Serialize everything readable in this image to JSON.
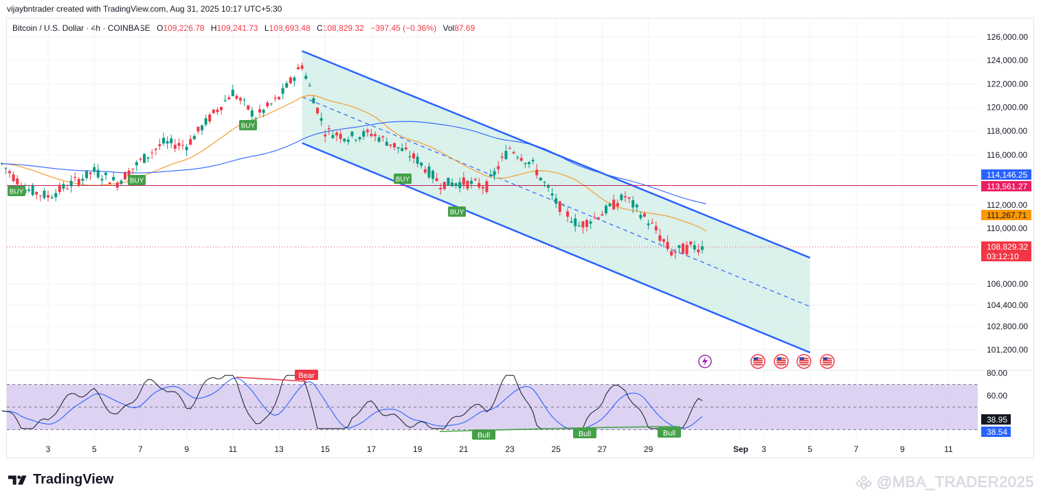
{
  "header": {
    "created_by": "vijaybntrader created with TradingView.com, Aug 31, 2025 10:17 UTC+5:30",
    "symbol": "Bitcoin / U.S. Dollar · 4h · COINBASE",
    "o_label": "O",
    "o_value": "109,226.78",
    "h_label": "H",
    "h_value": "109,241.73",
    "l_label": "L",
    "l_value": "108,693.48",
    "c_label": "C",
    "c_value": "108,829.32",
    "change": "−397.45 (−0.36%)",
    "vol_label": "Vol",
    "vol_value": "87.69"
  },
  "brand": "TradingView",
  "watermark": "@MBA_TRADER2025",
  "colors": {
    "up": "#089981",
    "down": "#f23645",
    "channel": "#2962ff",
    "channel_fill": "#d4efe9",
    "ma_orange": "#f7a23b",
    "ma_blue": "#2962ff",
    "resistance": "#c2185b",
    "rsi_band": "#d9cdef",
    "rsi_line": "#131722",
    "rsi_ma": "#2962ff"
  },
  "chart_data": [
    {
      "type": "candlestick",
      "title": "Bitcoin / U.S. Dollar · 4h · COINBASE",
      "y_axis_ticks": [
        "126,000.00",
        "124,000.00",
        "122,000.00",
        "120,000.00",
        "118,000.00",
        "116,000.00",
        "112,000.00",
        "110,000.00",
        "106,000.00",
        "104,400.00",
        "102,800.00",
        "101,200.00"
      ],
      "x_axis_ticks": [
        "3",
        "5",
        "7",
        "9",
        "11",
        "13",
        "15",
        "17",
        "19",
        "21",
        "23",
        "25",
        "27",
        "29",
        "Sep",
        "3",
        "5",
        "7",
        "9",
        "11"
      ],
      "closes_key_points": [
        {
          "date": "Aug 1",
          "price": 115300
        },
        {
          "date": "Aug 2",
          "price": 113300
        },
        {
          "date": "Aug 3",
          "price": 112700
        },
        {
          "date": "Aug 5",
          "price": 114700
        },
        {
          "date": "Aug 6",
          "price": 113800
        },
        {
          "date": "Aug 7",
          "price": 115500
        },
        {
          "date": "Aug 8",
          "price": 117000
        },
        {
          "date": "Aug 9",
          "price": 116800
        },
        {
          "date": "Aug 10",
          "price": 119100
        },
        {
          "date": "Aug 11",
          "price": 121300
        },
        {
          "date": "Aug 12",
          "price": 119200
        },
        {
          "date": "Aug 13",
          "price": 120800
        },
        {
          "date": "Aug 14",
          "price": 123600
        },
        {
          "date": "Aug 15",
          "price": 118000
        },
        {
          "date": "Aug 16",
          "price": 117500
        },
        {
          "date": "Aug 17",
          "price": 117800
        },
        {
          "date": "Aug 18",
          "price": 116800
        },
        {
          "date": "Aug 19",
          "price": 115600
        },
        {
          "date": "Aug 20",
          "price": 113700
        },
        {
          "date": "Aug 21",
          "price": 113800
        },
        {
          "date": "Aug 22",
          "price": 113500
        },
        {
          "date": "Aug 23",
          "price": 116600
        },
        {
          "date": "Aug 24",
          "price": 115200
        },
        {
          "date": "Aug 25",
          "price": 112200
        },
        {
          "date": "Aug 26",
          "price": 110200
        },
        {
          "date": "Aug 27",
          "price": 111300
        },
        {
          "date": "Aug 28",
          "price": 112700
        },
        {
          "date": "Aug 29",
          "price": 110600
        },
        {
          "date": "Aug 30",
          "price": 108400
        },
        {
          "date": "Aug 31",
          "price": 108829.32
        }
      ],
      "overlays": [
        {
          "name": "Descending channel upper",
          "from": {
            "date": "Aug 14",
            "price": 124800
          },
          "to": {
            "date": "Sep 5",
            "price": 108000
          }
        },
        {
          "name": "Descending channel lower",
          "from": {
            "date": "Aug 14",
            "price": 117000
          },
          "to": {
            "date": "Sep 5",
            "price": 101000
          }
        },
        {
          "name": "Channel midline",
          "from": {
            "date": "Aug 14",
            "price": 120900
          },
          "to": {
            "date": "Sep 5",
            "price": 104300
          }
        },
        {
          "name": "Horizontal level",
          "price": 113561.27
        }
      ],
      "price_labels": [
        {
          "text": "114,146.25",
          "kind": "blue-ma"
        },
        {
          "text": "113,561.27",
          "kind": "level"
        },
        {
          "text": "111,267.71",
          "kind": "orange-ma"
        },
        {
          "text": "108,829.32",
          "kind": "last"
        },
        {
          "text": "03:12:10",
          "kind": "countdown"
        }
      ],
      "signals": [
        {
          "label": "BUY",
          "date": "Aug 1"
        },
        {
          "label": "BUY",
          "date": "Aug 11"
        },
        {
          "label": "BUY",
          "date": "Aug 6"
        },
        {
          "label": "BUY",
          "date": "Aug 18"
        },
        {
          "label": "BUY",
          "date": "Aug 20"
        }
      ]
    },
    {
      "type": "line",
      "title": "RSI",
      "y_axis_ticks": [
        "80.00",
        "60.00"
      ],
      "band": [
        30,
        70
      ],
      "last_values": [
        "38.95",
        "38.54"
      ],
      "divergences": [
        {
          "label": "Bear",
          "from_date": "Aug 11",
          "to_date": "Aug 14"
        },
        {
          "label": "Bull",
          "from_date": "Aug 20",
          "to_date": "Aug 26"
        },
        {
          "label": "Bull",
          "from_date": "Aug 26",
          "to_date": "Aug 29"
        },
        {
          "label": "Bull",
          "from_date": "Aug 29",
          "to_date": "Aug 30"
        }
      ]
    }
  ]
}
